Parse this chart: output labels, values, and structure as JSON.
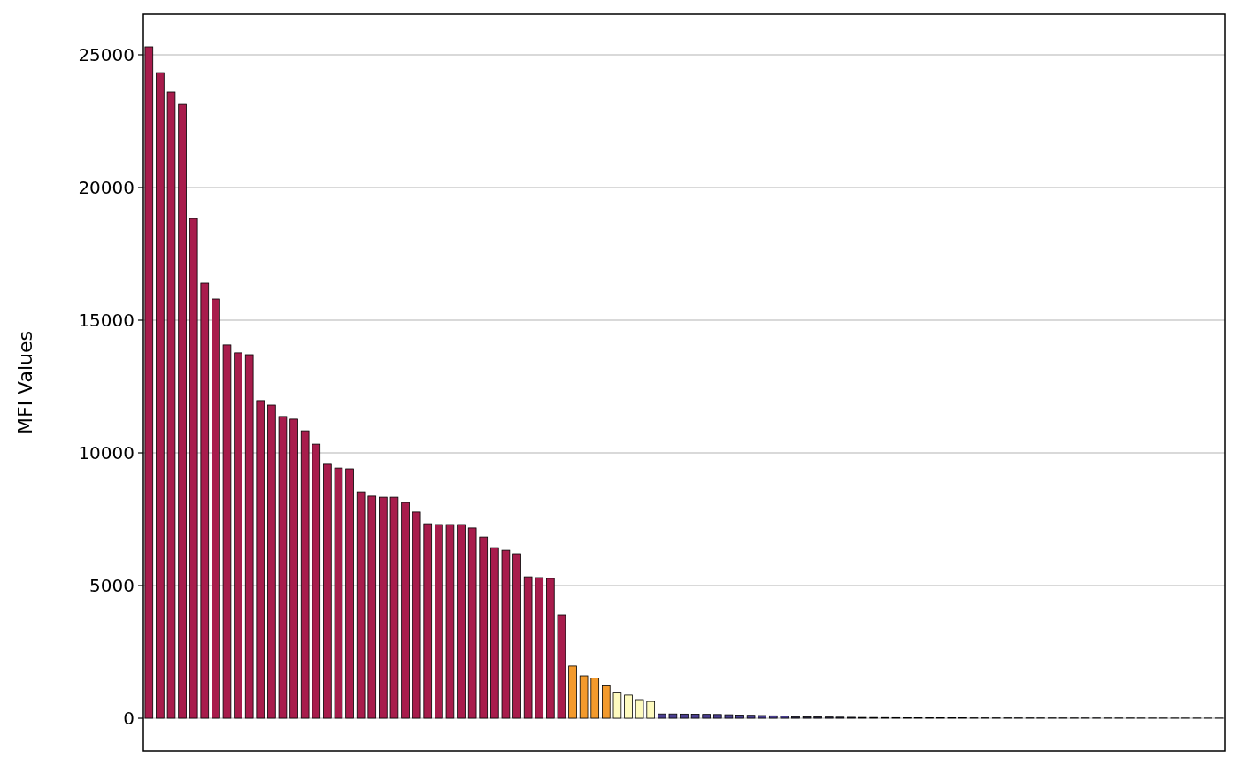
{
  "chart_data": {
    "type": "bar",
    "ylabel": "MFI Values",
    "categories": [
      null,
      null,
      null,
      null,
      null,
      null,
      null,
      null,
      null,
      null,
      null,
      null,
      null,
      null,
      null,
      null,
      null,
      null,
      null,
      null,
      null,
      null,
      null,
      null,
      null,
      null,
      null,
      null,
      null,
      null,
      null,
      null,
      null,
      null,
      null,
      null,
      null,
      null,
      null,
      null,
      null,
      null,
      null,
      null,
      null,
      null,
      null,
      null,
      null,
      null,
      null,
      null,
      null,
      null,
      null,
      null,
      null,
      null,
      null,
      null,
      null,
      null,
      null,
      null,
      null,
      null,
      null,
      null,
      null,
      null,
      null,
      null,
      null,
      null,
      null,
      null,
      null,
      null,
      null,
      null,
      null,
      null,
      null,
      null,
      null,
      null,
      null,
      null,
      null,
      null,
      null,
      null,
      null,
      null,
      null,
      null,
      null
    ],
    "values": [
      25300,
      24330,
      23600,
      23130,
      18830,
      16400,
      15800,
      14070,
      13770,
      13700,
      11970,
      11800,
      11370,
      11270,
      10830,
      10330,
      9570,
      9430,
      9400,
      8530,
      8370,
      8330,
      8330,
      8130,
      7770,
      7330,
      7300,
      7300,
      7300,
      7170,
      6830,
      6430,
      6330,
      6200,
      5330,
      5300,
      5270,
      3900,
      1970,
      1600,
      1520,
      1250,
      980,
      870,
      700,
      630,
      160,
      160,
      155,
      150,
      145,
      140,
      130,
      120,
      110,
      100,
      90,
      80,
      60,
      55,
      50,
      45,
      40,
      35,
      30,
      28,
      25,
      22,
      20,
      18,
      15,
      15,
      14,
      14,
      13,
      13,
      12,
      12,
      11,
      11,
      10,
      10,
      10,
      9,
      9,
      9,
      8,
      8,
      8,
      7,
      7,
      7,
      6,
      6,
      6,
      5,
      5
    ],
    "colors": [
      "#a81c4c",
      "#a81c4c",
      "#a81c4c",
      "#a81c4c",
      "#a81c4c",
      "#a81c4c",
      "#a81c4c",
      "#a81c4c",
      "#a81c4c",
      "#a81c4c",
      "#a81c4c",
      "#a81c4c",
      "#a81c4c",
      "#a81c4c",
      "#a81c4c",
      "#a81c4c",
      "#a81c4c",
      "#a81c4c",
      "#a81c4c",
      "#a81c4c",
      "#a81c4c",
      "#a81c4c",
      "#a81c4c",
      "#a81c4c",
      "#a81c4c",
      "#a81c4c",
      "#a81c4c",
      "#a81c4c",
      "#a81c4c",
      "#a81c4c",
      "#a81c4c",
      "#a81c4c",
      "#a81c4c",
      "#a81c4c",
      "#a81c4c",
      "#a81c4c",
      "#a81c4c",
      "#a81c4c",
      "#f39a2c",
      "#f39a2c",
      "#f39a2c",
      "#f39a2c",
      "#fefbbf",
      "#fefbbf",
      "#fefbbf",
      "#fefbbf",
      "#4b3f91",
      "#4b3f91",
      "#4b3f91",
      "#4b3f91",
      "#4b3f91",
      "#4b3f91",
      "#4b3f91",
      "#4b3f91",
      "#4b3f91",
      "#4b3f91",
      "#4b3f91",
      "#4b3f91",
      "#2d2a4a",
      "#2d2a4a",
      "#2d2a4a",
      "#2d2a4a",
      "#2d2a4a",
      "#2d2a4a",
      "#000004",
      "#000004",
      "#000004",
      "#000004",
      "#000004",
      "#000004",
      "#000004",
      "#000004",
      "#000004",
      "#000004",
      "#000004",
      "#000004",
      "#000004",
      "#000004",
      "#000004",
      "#000004",
      "#000004",
      "#000004",
      "#000004",
      "#000004",
      "#000004",
      "#000004",
      "#000004",
      "#000004",
      "#000004",
      "#000004",
      "#000004",
      "#000004",
      "#000004",
      "#000004",
      "#000004",
      "#000004",
      "#000004"
    ],
    "ylim": [
      -1233,
      26533
    ],
    "yticks": [
      0,
      5000,
      10000,
      15000,
      20000,
      25000
    ],
    "grid": "y"
  }
}
